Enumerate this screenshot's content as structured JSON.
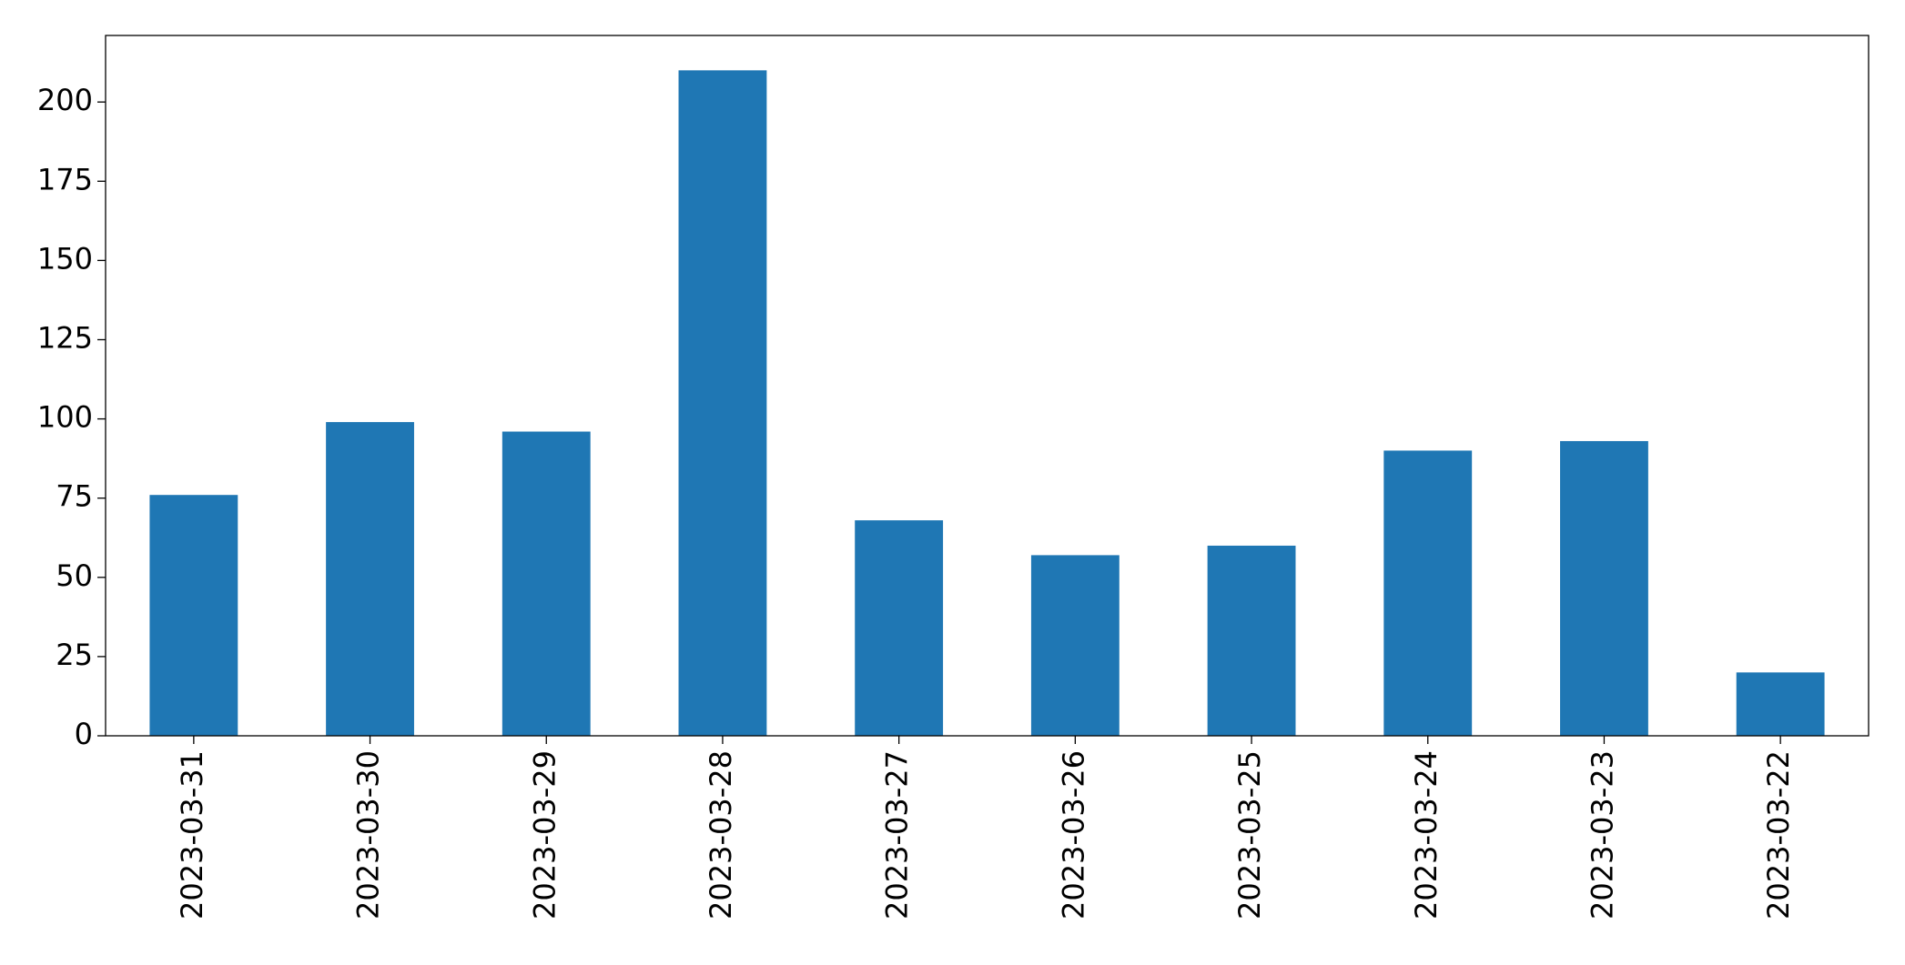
{
  "chart_data": {
    "type": "bar",
    "categories": [
      "2023-03-31",
      "2023-03-30",
      "2023-03-29",
      "2023-03-28",
      "2023-03-27",
      "2023-03-26",
      "2023-03-25",
      "2023-03-24",
      "2023-03-23",
      "2023-03-22"
    ],
    "values": [
      76,
      99,
      96,
      210,
      68,
      57,
      60,
      90,
      93,
      20
    ],
    "color": "#1f77b4",
    "ylim": [
      0,
      221
    ],
    "yticks": [
      0,
      25,
      50,
      75,
      100,
      125,
      150,
      175,
      200
    ],
    "grid": false
  }
}
